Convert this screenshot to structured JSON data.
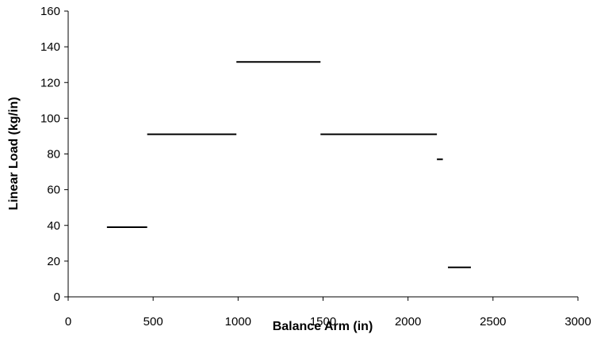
{
  "chart_data": {
    "type": "line",
    "title": "",
    "xlabel": "Balance Arm (in)",
    "ylabel": "Linear Load (kg/in)",
    "xlim": [
      0,
      3000
    ],
    "ylim": [
      0,
      160
    ],
    "x_ticks": [
      "0",
      "500",
      "1000",
      "1500",
      "2000",
      "2500",
      "3000"
    ],
    "y_ticks": [
      "0",
      "20",
      "40",
      "60",
      "80",
      "100",
      "120",
      "140",
      "160"
    ],
    "grid": false,
    "legend": "none",
    "segments": [
      {
        "x_start": 228,
        "x_end": 465,
        "value": 39
      },
      {
        "x_start": 465,
        "x_end": 990,
        "value": 91
      },
      {
        "x_start": 990,
        "x_end": 1485,
        "value": 131.5
      },
      {
        "x_start": 1485,
        "x_end": 2170,
        "value": 91
      },
      {
        "x_start": 2170,
        "x_end": 2205,
        "value": 77
      },
      {
        "x_start": 2235,
        "x_end": 2370,
        "value": 16.5
      }
    ]
  }
}
